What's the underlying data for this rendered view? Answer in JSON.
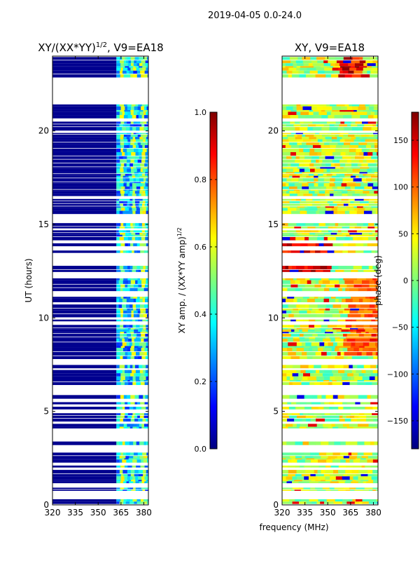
{
  "chart_data": [
    {
      "type": "heatmap",
      "suptitle": "2019-04-05 0.0-24.0",
      "title": "XY/(XX*YY)",
      "title_exponent": "1/2",
      "title_suffix": ", V9=EA18",
      "xlabel": "frequency (MHz)",
      "ylabel": "UT (hours)",
      "xlim": [
        320,
        383
      ],
      "ylim": [
        0,
        24
      ],
      "xticks": [
        320,
        335,
        350,
        365,
        380
      ],
      "yticks": [
        0,
        5,
        10,
        15,
        20
      ],
      "colorbar": {
        "label": "XY amp. / (XX*YY amp)",
        "label_exponent": "1/2",
        "range": [
          0.0,
          1.0
        ],
        "ticks": [
          "0.0",
          "0.2",
          "0.4",
          "0.6",
          "0.8",
          "1.0"
        ],
        "colormap": "jet"
      },
      "description_value_regions": [
        {
          "freq_range": [
            320,
            360
          ],
          "value": 0.0
        },
        {
          "freq_range": [
            360,
            383
          ],
          "value_range": [
            0.1,
            0.6
          ]
        }
      ]
    },
    {
      "type": "heatmap",
      "title": "XY, V9=EA18",
      "xlabel": "frequency (MHz)",
      "xlim": [
        320,
        383
      ],
      "ylim": [
        0,
        24
      ],
      "xticks": [
        320,
        335,
        350,
        365,
        380
      ],
      "yticks": [
        0,
        5,
        10,
        15,
        20
      ],
      "colorbar": {
        "label": "phase (deg)",
        "range": [
          -180,
          180
        ],
        "ticks": [
          "150",
          "100",
          "50",
          "0",
          "−50",
          "−100",
          "−150"
        ],
        "colormap": "jet"
      }
    }
  ],
  "shared_xlabel": "frequency (MHz)"
}
